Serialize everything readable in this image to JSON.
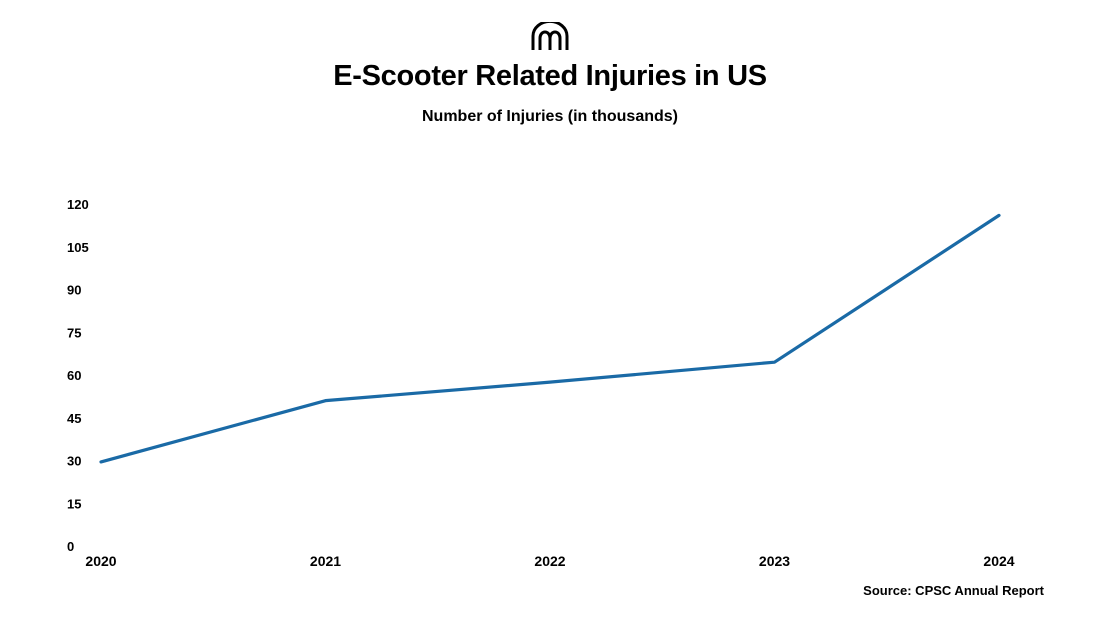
{
  "header": {
    "logo_icon": "mm-logo-icon",
    "title": "E-Scooter Related Injuries in US",
    "subtitle": "Number of Injuries (in thousands)"
  },
  "footer": {
    "source": "Source: CPSC Annual Report"
  },
  "chart_data": {
    "type": "line",
    "title": "E-Scooter Related Injuries in US",
    "subtitle": "Number of Injuries (in thousands)",
    "xlabel": "",
    "ylabel": "",
    "categories": [
      "2020",
      "2021",
      "2022",
      "2023",
      "2024"
    ],
    "series": [
      {
        "values": [
          29.5,
          51,
          57.5,
          64.5,
          116
        ],
        "color": "#1a6aa6"
      }
    ],
    "ylim": [
      0,
      120
    ],
    "yticks": [
      0,
      15,
      30,
      45,
      60,
      75,
      90,
      105,
      120
    ],
    "grid": false,
    "legend": "none"
  }
}
